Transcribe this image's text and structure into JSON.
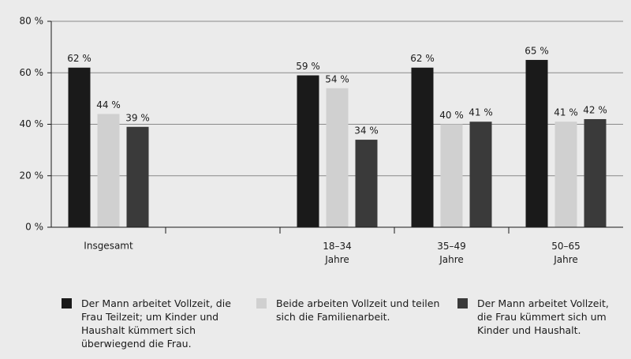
{
  "chart_data": {
    "type": "bar",
    "categories": [
      "Insgesamt",
      null,
      "18–34 Jahre",
      "35–49 Jahre",
      "50–65 Jahre"
    ],
    "series": [
      {
        "name": "Der Mann arbeitet Vollzeit, die Frau Teilzeit; um Kinder und Haushalt kümmert sich überwiegend die Frau.",
        "color": "#1a1a1a",
        "values": [
          62,
          null,
          59,
          62,
          65
        ],
        "value_labels": [
          "62 %",
          null,
          "59 %",
          "62 %",
          "65 %"
        ]
      },
      {
        "name": "Beide arbeiten Vollzeit und teilen sich die Familienarbeit.",
        "color": "#d0d0d0",
        "values": [
          44,
          null,
          54,
          40,
          41
        ],
        "value_labels": [
          "44 %",
          null,
          "54 %",
          "40 %",
          "41 %"
        ]
      },
      {
        "name": "Der Mann arbeitet Vollzeit, die Frau kümmert sich um Kinder und Haushalt.",
        "color": "#3a3a3a",
        "values": [
          39,
          null,
          34,
          41,
          42
        ],
        "value_labels": [
          "39 %",
          null,
          "34 %",
          "41 %",
          "42 %"
        ]
      }
    ],
    "ylim": [
      0,
      80
    ],
    "yticks": [
      {
        "value": 0,
        "label": "0 %"
      },
      {
        "value": 20,
        "label": "20 %"
      },
      {
        "value": 40,
        "label": "40 %"
      },
      {
        "value": 60,
        "label": "60 %"
      },
      {
        "value": 80,
        "label": "80 %"
      }
    ],
    "grid": true
  }
}
